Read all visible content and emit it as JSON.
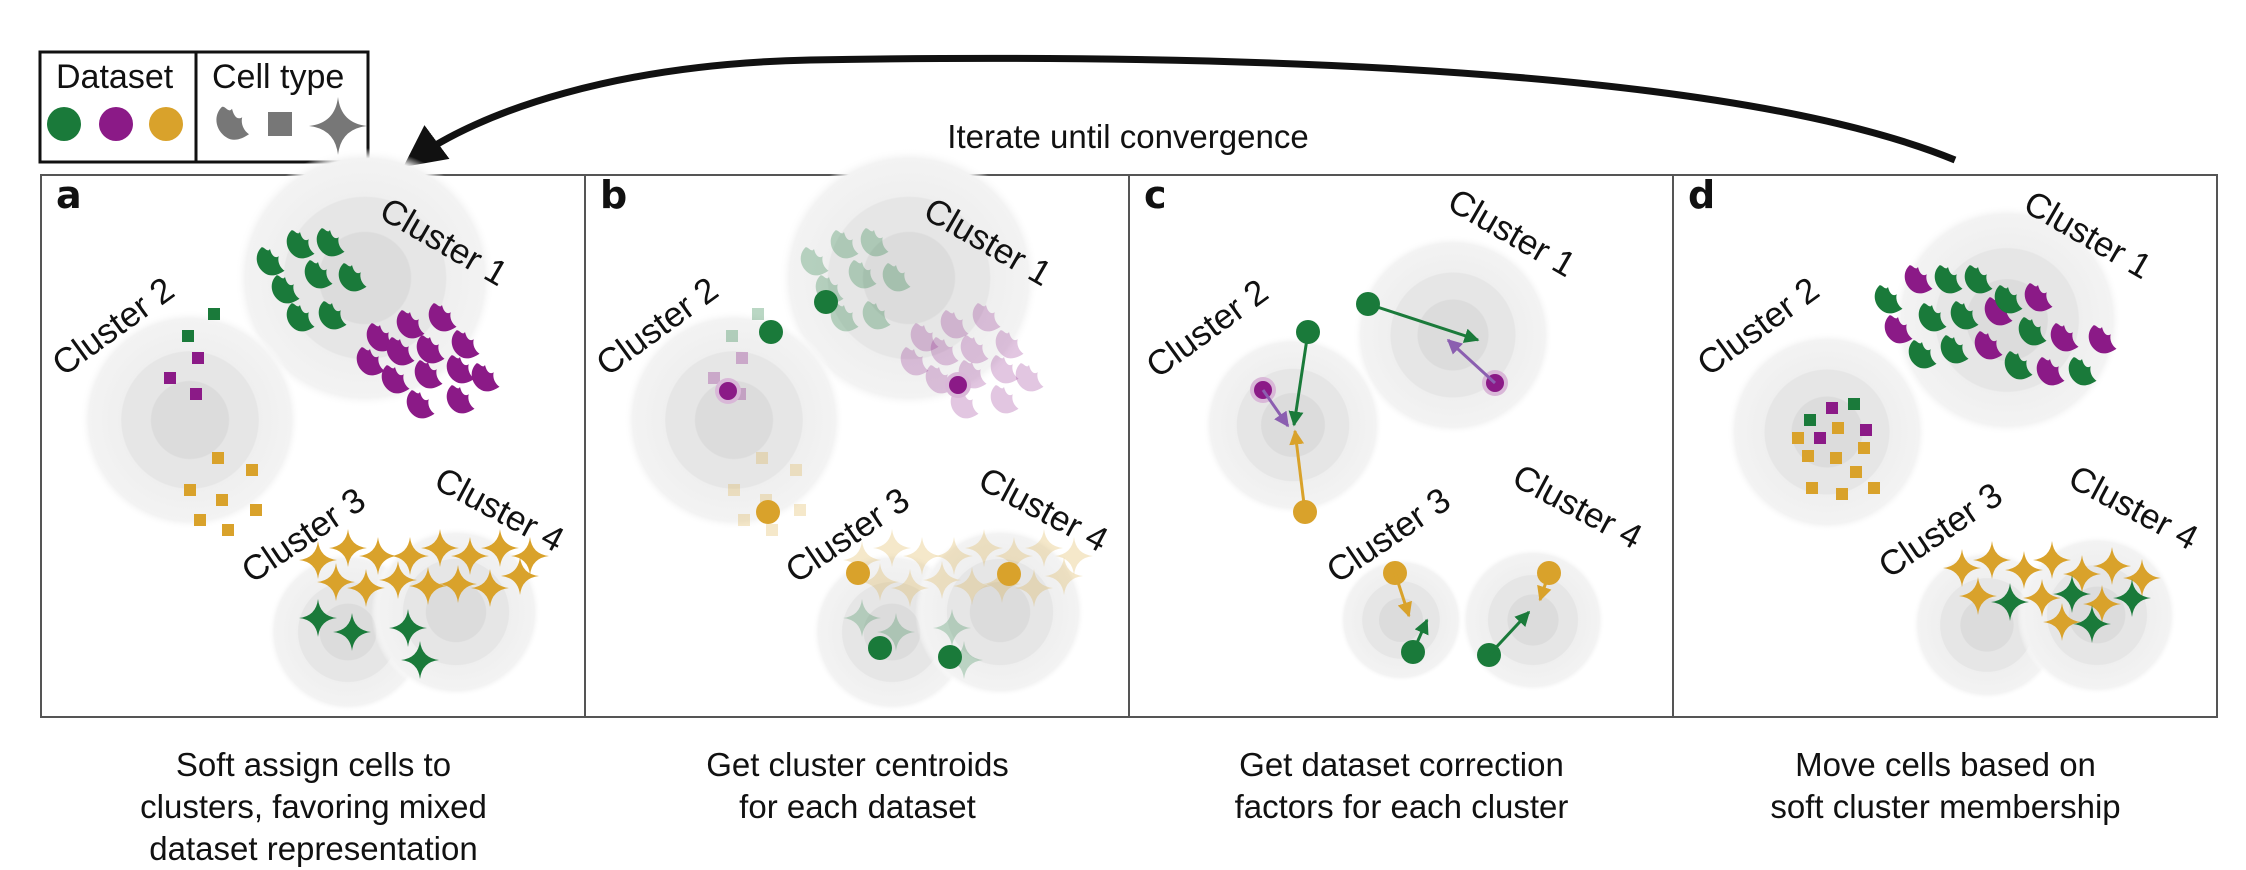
{
  "legend": {
    "dataset_title": "Dataset",
    "celltype_title": "Cell type",
    "dataset_colors": [
      "#1a7a3a",
      "#8b1a87",
      "#d9a22b"
    ],
    "cell_type_icons": [
      "blob-icon",
      "square-icon",
      "star-icon"
    ]
  },
  "iterate_label": "Iterate until convergence",
  "panels": [
    {
      "letter": "a",
      "clusters": [
        "Cluster 1",
        "Cluster 2",
        "Cluster 3",
        "Cluster 4"
      ],
      "caption": [
        "Soft assign cells to",
        "clusters, favoring mixed",
        "dataset representation"
      ]
    },
    {
      "letter": "b",
      "clusters": [
        "Cluster 1",
        "Cluster 2",
        "Cluster 3",
        "Cluster 4"
      ],
      "caption": [
        "Get cluster centroids",
        "for each dataset"
      ]
    },
    {
      "letter": "c",
      "clusters": [
        "Cluster 1",
        "Cluster 2",
        "Cluster 3",
        "Cluster 4"
      ],
      "caption": [
        "Get dataset correction",
        "factors for each cluster"
      ]
    },
    {
      "letter": "d",
      "clusters": [
        "Cluster 1",
        "Cluster 2",
        "Cluster 3",
        "Cluster 4"
      ],
      "caption": [
        "Move cells based on",
        "soft cluster membership"
      ]
    }
  ],
  "colors": {
    "green": "#1a7a3a",
    "purple": "#8b1a87",
    "gold": "#d9a22b",
    "gray": "#777777"
  }
}
